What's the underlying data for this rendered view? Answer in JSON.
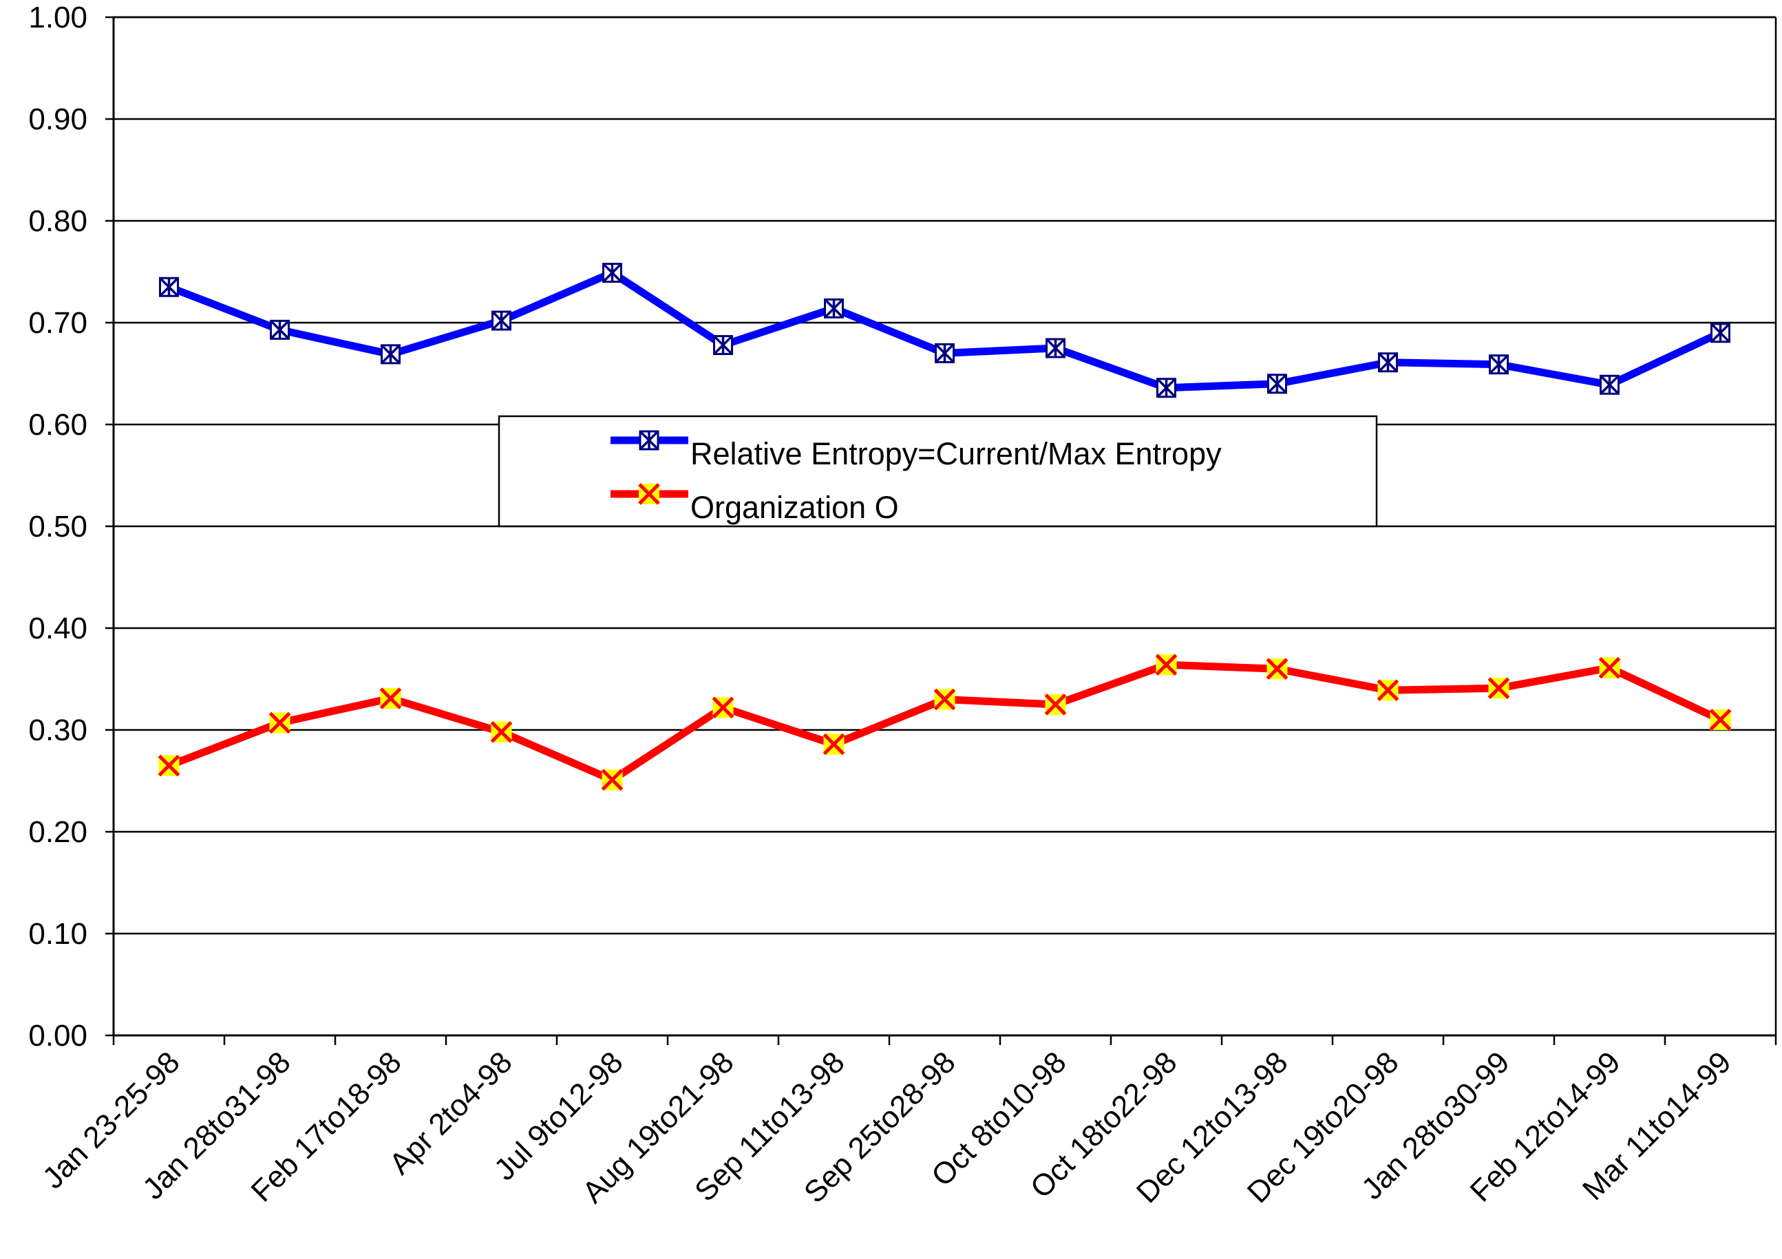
{
  "chart_data": {
    "type": "line",
    "title": "",
    "xlabel": "",
    "ylabel": "",
    "ylim": [
      0,
      1
    ],
    "yticks": [
      "0.00",
      "0.10",
      "0.20",
      "0.30",
      "0.40",
      "0.50",
      "0.60",
      "0.70",
      "0.80",
      "0.90",
      "1.00"
    ],
    "categories": [
      "Jan 23-25-98",
      "Jan 28to31-98",
      "Feb 17to18-98",
      "Apr 2to4-98",
      "Jul 9to12-98",
      "Aug 19to21-98",
      "Sep 11to13-98",
      "Sep 25to28-98",
      "Oct 8to10-98",
      "Oct 18to22-98",
      "Dec 12to13-98",
      "Dec 19to20-98",
      "Jan 28to30-99",
      "Feb 12to14-99",
      "Mar 11to14-99"
    ],
    "grid": true,
    "legend_position": "center",
    "series": [
      {
        "name": "Relative Entropy=Current/Max Entropy",
        "color": "#0000ff",
        "marker": "asterisk",
        "values": [
          0.735,
          0.693,
          0.669,
          0.702,
          0.749,
          0.678,
          0.714,
          0.67,
          0.675,
          0.636,
          0.64,
          0.661,
          0.659,
          0.639,
          0.69
        ]
      },
      {
        "name": "Organization O",
        "color": "#ff0000",
        "marker": "x-yellow",
        "values": [
          0.265,
          0.307,
          0.331,
          0.298,
          0.251,
          0.322,
          0.286,
          0.33,
          0.325,
          0.364,
          0.36,
          0.339,
          0.341,
          0.361,
          0.31
        ]
      }
    ]
  }
}
